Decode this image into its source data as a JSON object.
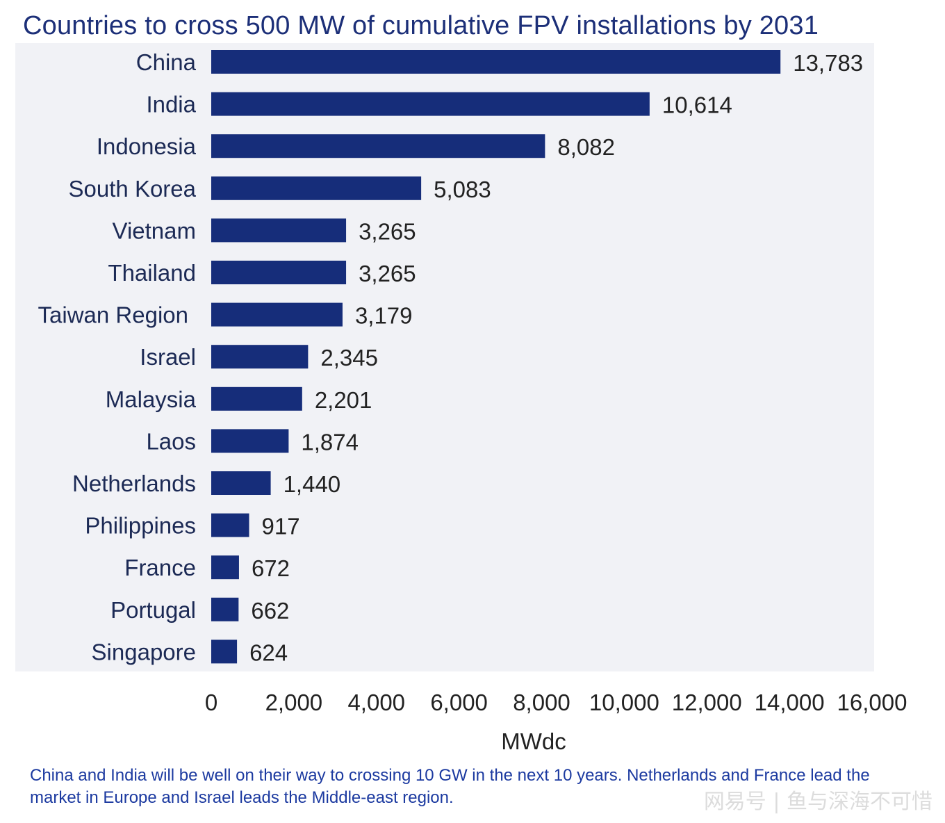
{
  "chart_data": {
    "type": "bar",
    "orientation": "horizontal",
    "title": "Countries to cross 500 MW of cumulative FPV installations by 2031",
    "xlabel": "MWdc",
    "ylabel": "",
    "xlim": [
      0,
      16000
    ],
    "xticks": [
      "0",
      "2,000",
      "4,000",
      "6,000",
      "8,000",
      "10,000",
      "12,000",
      "14,000",
      "16,000"
    ],
    "categories": [
      "China",
      "India",
      "Indonesia",
      "South Korea",
      "Vietnam",
      "Thailand",
      "Taiwan Region",
      "Israel",
      "Malaysia",
      "Laos",
      "Netherlands",
      "Philippines",
      "France",
      "Portugal",
      "Singapore"
    ],
    "values": [
      13783,
      10614,
      8082,
      5083,
      3265,
      3265,
      3179,
      2345,
      2201,
      1874,
      1440,
      917,
      672,
      662,
      624
    ],
    "value_labels": [
      "13,783",
      "10,614",
      "8,082",
      "5,083",
      "3,265",
      "3,265",
      "3,179",
      "2,345",
      "2,201",
      "1,874",
      "1,440",
      "917",
      "672",
      "662",
      "624"
    ],
    "grid": false,
    "bar_color": "#162d7a",
    "plot_background": "#f1f2f6"
  },
  "caption": "China and India will be well on their way to crossing 10 GW in the next 10 years. Netherlands and France lead the market in Europe and Israel leads the Middle-east region.",
  "watermark": "网易号 | 鱼与深海不可惜"
}
